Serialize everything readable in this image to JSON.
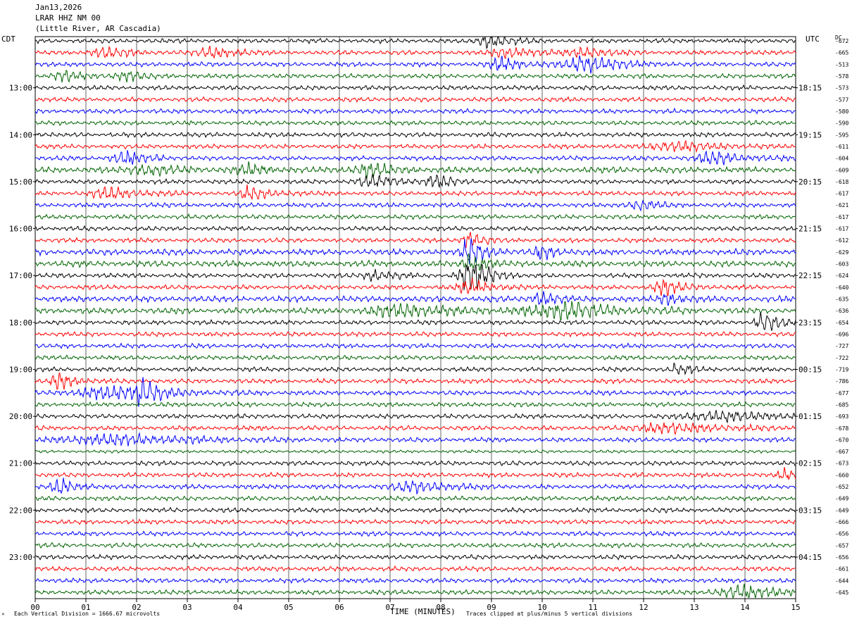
{
  "header": {
    "date": "Jan13,2026",
    "station": "LRAR HHZ NM 00",
    "location": "(Little River, AR Cascadia)"
  },
  "left_axis_title": "CDT",
  "right_axis_title": "UTC",
  "dc_title": "DC",
  "footer": {
    "scale_note": "Each Vertical Division = 1666.67 microvolts",
    "xlabel": "TIME (MINUTES)",
    "clip_note": "Traces clipped at plus/minus 5 vertical divisions",
    "corner_mark": "ᴹ"
  },
  "colors": {
    "black": "#000000",
    "red": "#ff0000",
    "blue": "#0000ff",
    "green": "#006400"
  },
  "chart_data": {
    "type": "line",
    "description_note": "",
    "xlim": [
      0,
      15
    ],
    "x_ticks": [
      "00",
      "01",
      "02",
      "03",
      "04",
      "05",
      "06",
      "07",
      "08",
      "09",
      "10",
      "11",
      "12",
      "13",
      "14",
      "15"
    ],
    "trace_colors": [
      "#000000",
      "#ff0000",
      "#0000ff",
      "#006400"
    ],
    "cdt_labels": [
      {
        "row": 4,
        "text": "13:00"
      },
      {
        "row": 8,
        "text": "14:00"
      },
      {
        "row": 12,
        "text": "15:00"
      },
      {
        "row": 16,
        "text": "16:00"
      },
      {
        "row": 20,
        "text": "17:00"
      },
      {
        "row": 24,
        "text": "18:00"
      },
      {
        "row": 28,
        "text": "19:00"
      },
      {
        "row": 32,
        "text": "20:00"
      },
      {
        "row": 36,
        "text": "21:00"
      },
      {
        "row": 40,
        "text": "22:00"
      },
      {
        "row": 44,
        "text": "23:00"
      }
    ],
    "utc_labels": [
      {
        "row": 4,
        "text": "18:15"
      },
      {
        "row": 8,
        "text": "19:15"
      },
      {
        "row": 12,
        "text": "20:15"
      },
      {
        "row": 16,
        "text": "21:15"
      },
      {
        "row": 20,
        "text": "22:15"
      },
      {
        "row": 24,
        "text": "23:15"
      },
      {
        "row": 28,
        "text": "00:15"
      },
      {
        "row": 32,
        "text": "01:15"
      },
      {
        "row": 36,
        "text": "02:15"
      },
      {
        "row": 40,
        "text": "03:15"
      },
      {
        "row": 44,
        "text": "04:15"
      }
    ],
    "dc_offsets": [
      "-672",
      "-665",
      "-513",
      "-578",
      "-573",
      "-577",
      "-580",
      "-590",
      "-595",
      "-611",
      "-604",
      "-609",
      "-618",
      "-617",
      "-621",
      "-617",
      "-617",
      "-612",
      "-629",
      "-603",
      "-624",
      "-640",
      "-635",
      "-636",
      "-654",
      "-696",
      "-727",
      "-722",
      "-719",
      "-786",
      "-677",
      "-685",
      "-693",
      "-678",
      "-670",
      "-667",
      "-673",
      "-660",
      "-652",
      "-649",
      "-649",
      "-666",
      "-656",
      "-657",
      "-656",
      "-661",
      "-644",
      "-645"
    ],
    "trace_amplitude": [
      3,
      3,
      3,
      3,
      3,
      3,
      3,
      3,
      3,
      3,
      3,
      4,
      3,
      3,
      3,
      3,
      3,
      3,
      4,
      4,
      3,
      3,
      4,
      4,
      3,
      3,
      3,
      3,
      3,
      3,
      3,
      3,
      3,
      3,
      3,
      2,
      3,
      3,
      3,
      3,
      3,
      3,
      3,
      3,
      3,
      3,
      3,
      3
    ],
    "events": [
      {
        "row": 0,
        "x": 9.0,
        "width": 0.4,
        "amp": 10
      },
      {
        "row": 1,
        "x": 1.4,
        "width": 0.5,
        "amp": 7
      },
      {
        "row": 1,
        "x": 3.5,
        "width": 0.6,
        "amp": 6
      },
      {
        "row": 1,
        "x": 9.3,
        "width": 0.5,
        "amp": 7
      },
      {
        "row": 1,
        "x": 10.8,
        "width": 0.5,
        "amp": 6
      },
      {
        "row": 2,
        "x": 9.2,
        "width": 0.5,
        "amp": 7
      },
      {
        "row": 2,
        "x": 10.9,
        "width": 0.7,
        "amp": 10
      },
      {
        "row": 3,
        "x": 0.6,
        "width": 0.4,
        "amp": 6
      },
      {
        "row": 3,
        "x": 1.8,
        "width": 0.4,
        "amp": 6
      },
      {
        "row": 9,
        "x": 12.6,
        "width": 0.8,
        "amp": 6
      },
      {
        "row": 10,
        "x": 1.8,
        "width": 0.5,
        "amp": 8
      },
      {
        "row": 10,
        "x": 13.4,
        "width": 0.6,
        "amp": 8
      },
      {
        "row": 11,
        "x": 2.2,
        "width": 0.6,
        "amp": 6
      },
      {
        "row": 11,
        "x": 4.2,
        "width": 0.5,
        "amp": 6
      },
      {
        "row": 11,
        "x": 6.6,
        "width": 0.5,
        "amp": 7
      },
      {
        "row": 12,
        "x": 6.7,
        "width": 0.6,
        "amp": 7
      },
      {
        "row": 12,
        "x": 7.9,
        "width": 0.3,
        "amp": 9
      },
      {
        "row": 13,
        "x": 1.5,
        "width": 0.6,
        "amp": 7
      },
      {
        "row": 13,
        "x": 4.3,
        "width": 0.4,
        "amp": 9
      },
      {
        "row": 14,
        "x": 11.9,
        "width": 0.4,
        "amp": 6
      },
      {
        "row": 17,
        "x": 8.6,
        "width": 0.3,
        "amp": 10
      },
      {
        "row": 18,
        "x": 8.6,
        "width": 0.3,
        "amp": 18
      },
      {
        "row": 18,
        "x": 10.0,
        "width": 0.3,
        "amp": 8
      },
      {
        "row": 19,
        "x": 8.6,
        "width": 0.3,
        "amp": 12
      },
      {
        "row": 20,
        "x": 8.6,
        "width": 0.4,
        "amp": 22
      },
      {
        "row": 20,
        "x": 6.7,
        "width": 0.4,
        "amp": 7
      },
      {
        "row": 21,
        "x": 8.6,
        "width": 0.4,
        "amp": 9
      },
      {
        "row": 21,
        "x": 12.4,
        "width": 0.4,
        "amp": 9
      },
      {
        "row": 22,
        "x": 10.0,
        "width": 0.3,
        "amp": 8
      },
      {
        "row": 22,
        "x": 12.5,
        "width": 0.3,
        "amp": 7
      },
      {
        "row": 23,
        "x": 7.2,
        "width": 1.0,
        "amp": 8
      },
      {
        "row": 23,
        "x": 10.4,
        "width": 1.0,
        "amp": 11
      },
      {
        "row": 24,
        "x": 14.4,
        "width": 0.3,
        "amp": 14
      },
      {
        "row": 28,
        "x": 12.7,
        "width": 0.3,
        "amp": 8
      },
      {
        "row": 29,
        "x": 0.5,
        "width": 0.3,
        "amp": 11
      },
      {
        "row": 30,
        "x": 2.1,
        "width": 0.3,
        "amp": 16
      },
      {
        "row": 30,
        "x": 1.5,
        "width": 1.3,
        "amp": 7
      },
      {
        "row": 32,
        "x": 13.5,
        "width": 1.1,
        "amp": 6
      },
      {
        "row": 33,
        "x": 12.5,
        "width": 1.2,
        "amp": 6
      },
      {
        "row": 34,
        "x": 1.5,
        "width": 1.8,
        "amp": 6
      },
      {
        "row": 37,
        "x": 14.8,
        "width": 0.2,
        "amp": 8
      },
      {
        "row": 38,
        "x": 0.5,
        "width": 0.3,
        "amp": 10
      },
      {
        "row": 38,
        "x": 7.5,
        "width": 0.8,
        "amp": 6
      },
      {
        "row": 47,
        "x": 14.0,
        "width": 1.0,
        "amp": 7
      }
    ]
  }
}
